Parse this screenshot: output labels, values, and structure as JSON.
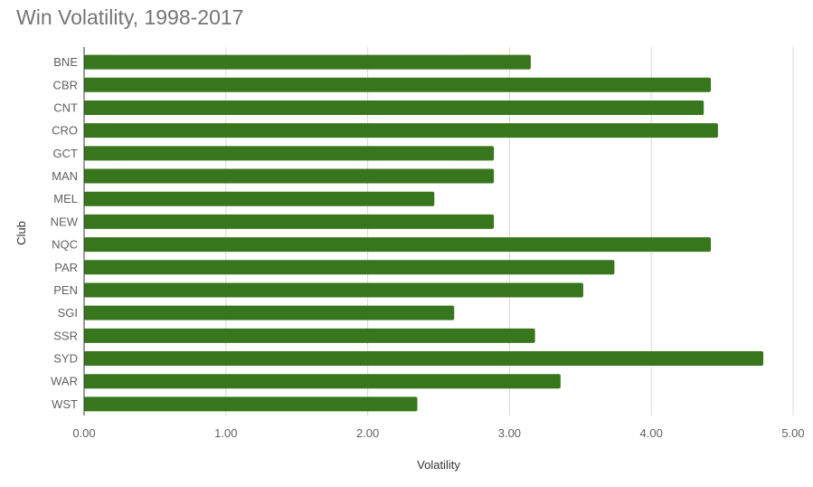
{
  "chart_data": {
    "type": "bar",
    "orientation": "horizontal",
    "title": "Win Volatility, 1998-2017",
    "xlabel": "Volatility",
    "ylabel": "Club",
    "categories": [
      "BNE",
      "CBR",
      "CNT",
      "CRO",
      "GCT",
      "MAN",
      "MEL",
      "NEW",
      "NQC",
      "PAR",
      "PEN",
      "SGI",
      "SSR",
      "SYD",
      "WAR",
      "WST"
    ],
    "values": [
      3.15,
      4.42,
      4.37,
      4.47,
      2.89,
      2.89,
      2.47,
      2.89,
      4.42,
      3.74,
      3.52,
      2.61,
      3.18,
      4.79,
      3.36,
      2.35
    ],
    "xlim": [
      0,
      5
    ],
    "xticks": [
      "0.00",
      "1.00",
      "2.00",
      "3.00",
      "4.00",
      "5.00"
    ],
    "grid": true,
    "legend": "none",
    "bar_color": "#38761d"
  }
}
